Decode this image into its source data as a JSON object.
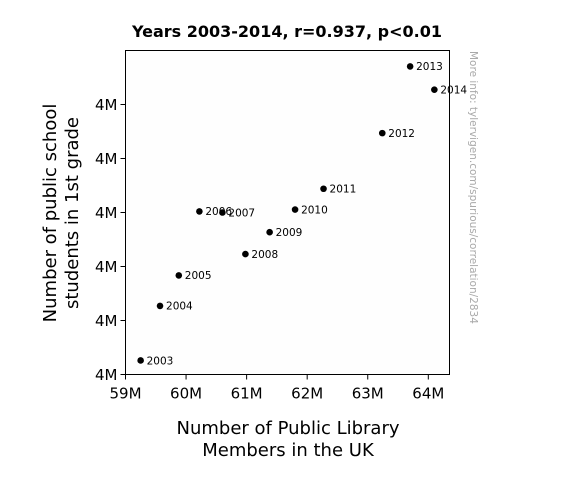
{
  "chart_data": {
    "type": "scatter",
    "title": "Years 2003-2014, r=0.937, p<0.01",
    "xlabel": [
      "Number of Public Library",
      "Members in the UK"
    ],
    "ylabel": [
      "Number of public school",
      "students in 1st grade"
    ],
    "xlim": [
      59000000,
      64350000
    ],
    "ylim": [
      3935000,
      4055000
    ],
    "x_ticks": [
      {
        "value": 59000000,
        "label": "59M"
      },
      {
        "value": 60000000,
        "label": "60M"
      },
      {
        "value": 61000000,
        "label": "61M"
      },
      {
        "value": 62000000,
        "label": "62M"
      },
      {
        "value": 63000000,
        "label": "63M"
      },
      {
        "value": 64000000,
        "label": "64M"
      }
    ],
    "y_ticks": [
      {
        "value": 3935000,
        "label": "4M"
      },
      {
        "value": 3955000,
        "label": "4M"
      },
      {
        "value": 3975000,
        "label": "4M"
      },
      {
        "value": 3995000,
        "label": "4M"
      },
      {
        "value": 4015000,
        "label": "4M"
      },
      {
        "value": 4035000,
        "label": "4M"
      }
    ],
    "grid": false,
    "legend": "none",
    "point_color": "#000000",
    "points": [
      {
        "label": "2003",
        "x": 59250000,
        "y": 3940200
      },
      {
        "label": "2004",
        "x": 59570000,
        "y": 3960400
      },
      {
        "label": "2005",
        "x": 59880000,
        "y": 3971700
      },
      {
        "label": "2006",
        "x": 60220000,
        "y": 3995400
      },
      {
        "label": "2007",
        "x": 60600000,
        "y": 3995000
      },
      {
        "label": "2008",
        "x": 60980000,
        "y": 3979600
      },
      {
        "label": "2009",
        "x": 61380000,
        "y": 3987700
      },
      {
        "label": "2010",
        "x": 61800000,
        "y": 3996100
      },
      {
        "label": "2011",
        "x": 62270000,
        "y": 4003800
      },
      {
        "label": "2012",
        "x": 63240000,
        "y": 4024400
      },
      {
        "label": "2013",
        "x": 63700000,
        "y": 4049100
      },
      {
        "label": "2014",
        "x": 64100000,
        "y": 4040500
      }
    ]
  },
  "watermark": "More info: tylervigen.com/spurious/correlation/2834"
}
